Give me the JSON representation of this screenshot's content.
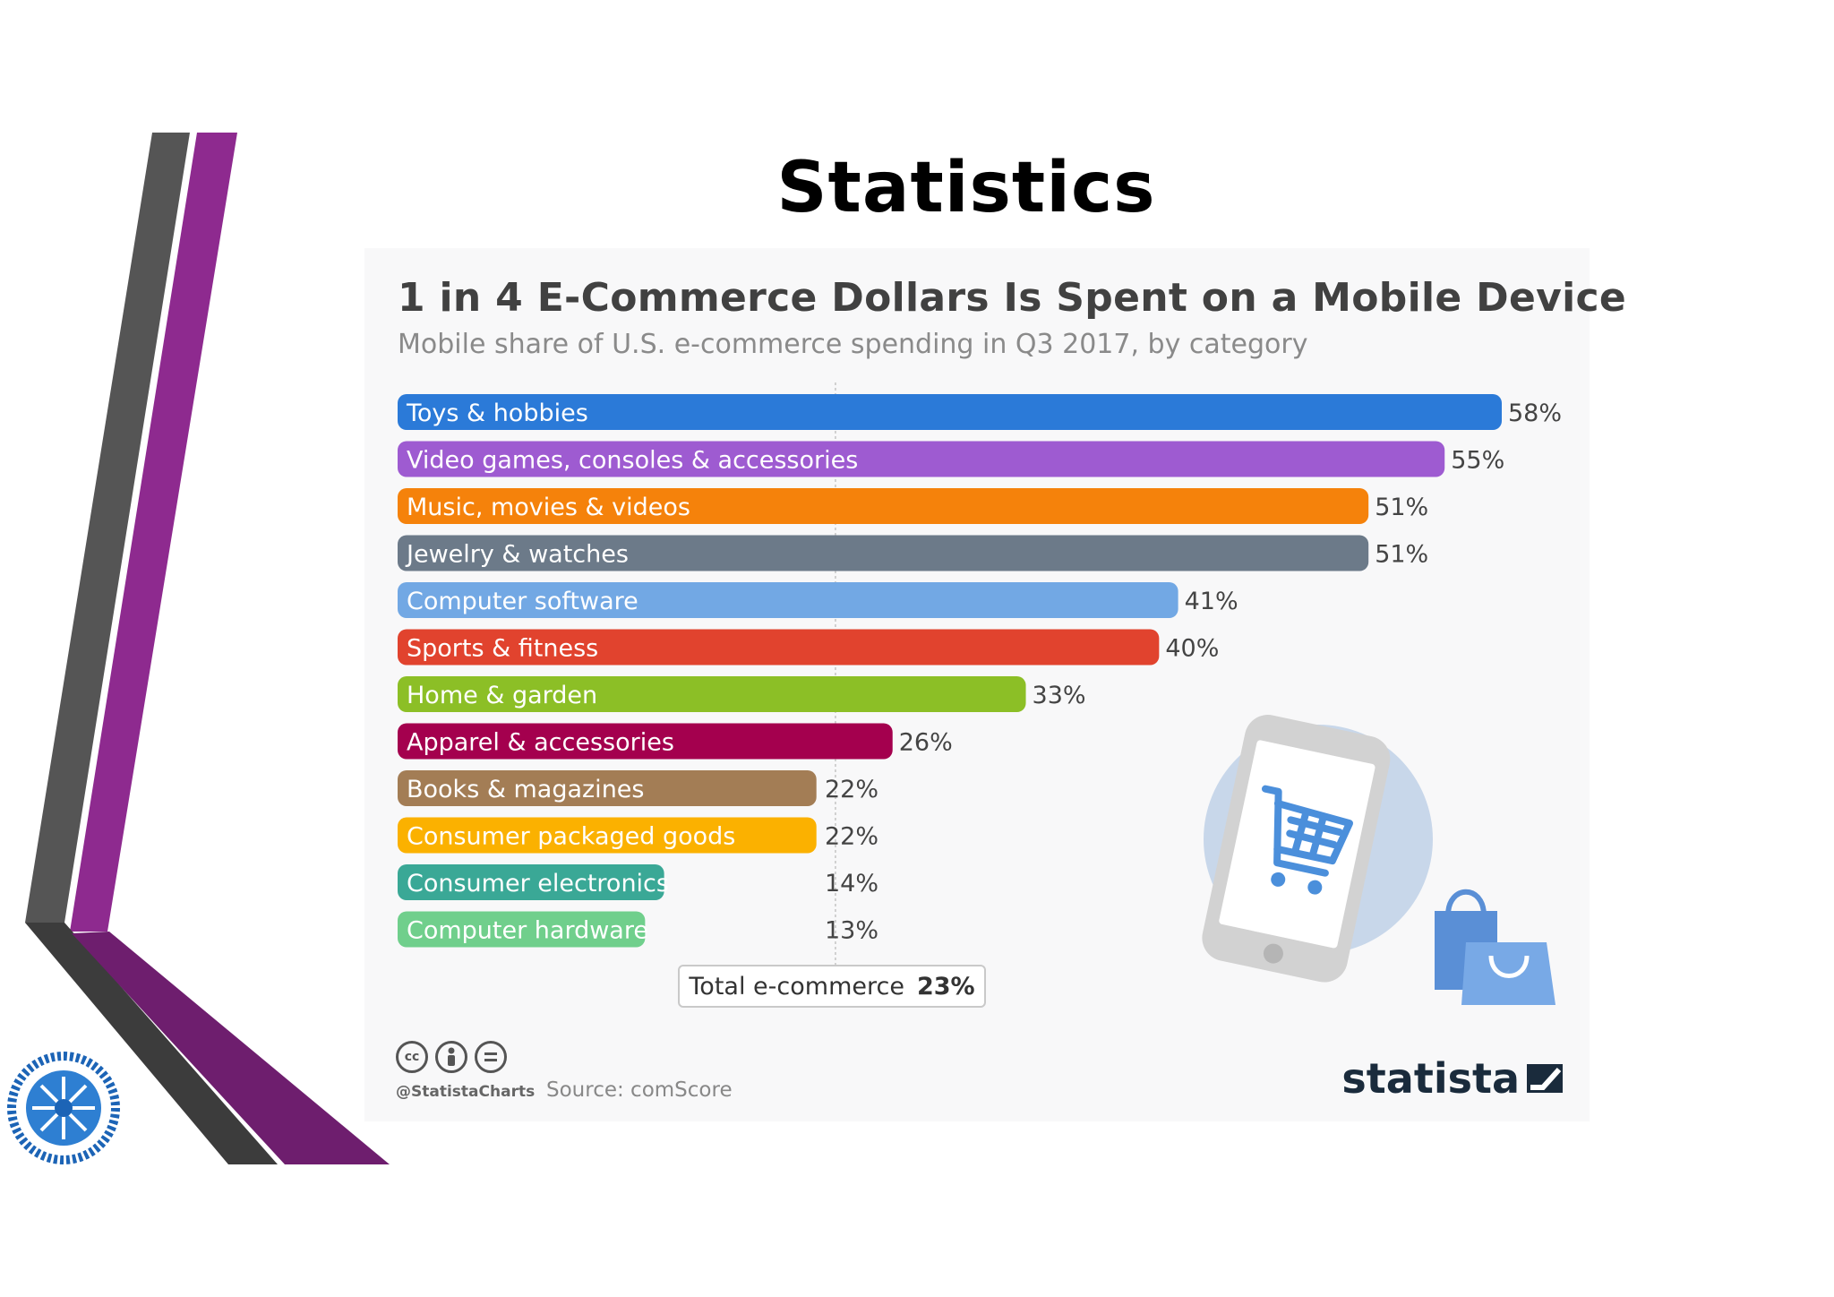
{
  "slide": {
    "title": "Statistics"
  },
  "chart_data": {
    "type": "bar",
    "orientation": "horizontal",
    "title": "1 in 4 E-Commerce Dollars Is Spent on a Mobile Device",
    "subtitle": "Mobile share of U.S. e-commerce spending in Q3 2017, by category",
    "unit": "%",
    "xlim": [
      0,
      58
    ],
    "reference": {
      "label": "Total e-commerce",
      "value": 23,
      "value_label": "23%"
    },
    "bars": [
      {
        "category": "Toys & hobbies",
        "value": 58,
        "label": "58%",
        "color": "#2b7ad8"
      },
      {
        "category": "Video games, consoles & accessories",
        "value": 55,
        "label": "55%",
        "color": "#9e5bd1"
      },
      {
        "category": "Music, movies & videos",
        "value": 51,
        "label": "51%",
        "color": "#f5820b"
      },
      {
        "category": "Jewelry & watches",
        "value": 51,
        "label": "51%",
        "color": "#6c7a89"
      },
      {
        "category": "Computer software",
        "value": 41,
        "label": "41%",
        "color": "#72a8e4"
      },
      {
        "category": "Sports & fitness",
        "value": 40,
        "label": "40%",
        "color": "#e1432e"
      },
      {
        "category": "Home & garden",
        "value": 33,
        "label": "33%",
        "color": "#8cbf26"
      },
      {
        "category": "Apparel & accessories",
        "value": 26,
        "label": "26%",
        "color": "#a4004e"
      },
      {
        "category": "Books & magazines",
        "value": 22,
        "label": "22%",
        "color": "#a37d55"
      },
      {
        "category": "Consumer packaged goods",
        "value": 22,
        "label": "22%",
        "color": "#fbb100"
      },
      {
        "category": "Consumer electronics",
        "value": 14,
        "label": "14%",
        "color": "#3aa896"
      },
      {
        "category": "Computer hardware",
        "value": 13,
        "label": "13%",
        "color": "#70cf8c"
      }
    ]
  },
  "footer": {
    "handle": "@StatistaCharts",
    "source": "Source: comScore",
    "brand": "statista"
  },
  "icons": [
    "cc-license-icon",
    "phone-cart-icon",
    "shopping-bags-icon",
    "statista-logo-icon",
    "chamber-emblem-icon"
  ]
}
